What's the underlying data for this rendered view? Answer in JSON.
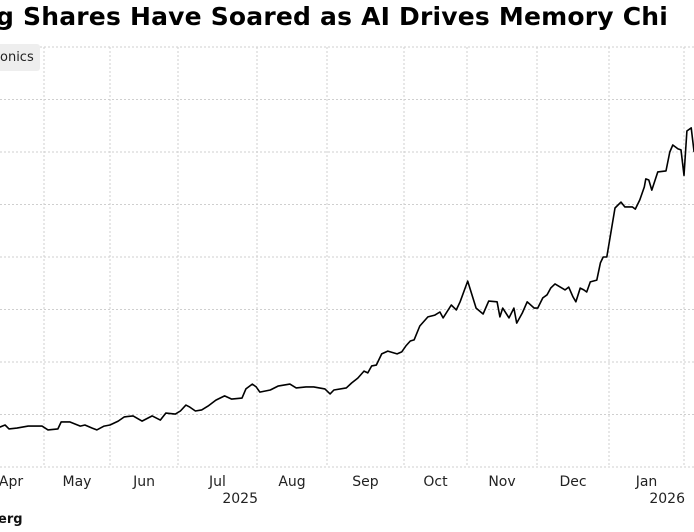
{
  "chart_data": {
    "type": "line",
    "title": "g Shares Have Soared as AI Drives Memory Chi",
    "legend": [
      {
        "name": "onics",
        "color": "#000000"
      }
    ],
    "legend_placement": "top-left",
    "xlabel": "",
    "ylabel": "",
    "x_ticks": [
      "Apr",
      "May",
      "Jun",
      "Jul",
      "Aug",
      "Sep",
      "Oct",
      "Nov",
      "Dec",
      "Jan"
    ],
    "x_year_labels": [
      {
        "label": "2025",
        "after_month": "Jul"
      },
      {
        "label": "2026",
        "after_month": "Jan"
      }
    ],
    "x_unit": "months since 2025-04-01 (May 1 = 1)",
    "ylim": [
      40000,
      160000
    ],
    "y_grid_step": 15000,
    "grid": true,
    "series": [
      {
        "name": "onics",
        "color": "#000000",
        "points": [
          [
            0.33,
            51400
          ],
          [
            0.41,
            52000
          ],
          [
            0.47,
            50900
          ],
          [
            0.59,
            51100
          ],
          [
            0.76,
            51700
          ],
          [
            0.97,
            51700
          ],
          [
            1.06,
            50600
          ],
          [
            1.21,
            50900
          ],
          [
            1.26,
            52900
          ],
          [
            1.39,
            52900
          ],
          [
            1.55,
            51700
          ],
          [
            1.62,
            52000
          ],
          [
            1.73,
            51100
          ],
          [
            1.8,
            50600
          ],
          [
            1.91,
            51700
          ],
          [
            2.0,
            52000
          ],
          [
            2.12,
            53100
          ],
          [
            2.21,
            54300
          ],
          [
            2.34,
            54600
          ],
          [
            2.47,
            53100
          ],
          [
            2.62,
            54600
          ],
          [
            2.74,
            53400
          ],
          [
            2.82,
            55400
          ],
          [
            2.96,
            55100
          ],
          [
            3.03,
            56000
          ],
          [
            3.1,
            57700
          ],
          [
            3.15,
            57100
          ],
          [
            3.22,
            56000
          ],
          [
            3.3,
            56300
          ],
          [
            3.38,
            57400
          ],
          [
            3.48,
            59100
          ],
          [
            3.59,
            60300
          ],
          [
            3.68,
            59400
          ],
          [
            3.81,
            59700
          ],
          [
            3.86,
            62300
          ],
          [
            3.94,
            63700
          ],
          [
            3.99,
            62900
          ],
          [
            4.04,
            61400
          ],
          [
            4.19,
            62000
          ],
          [
            4.3,
            63100
          ],
          [
            4.47,
            63700
          ],
          [
            4.56,
            62600
          ],
          [
            4.7,
            62900
          ],
          [
            4.81,
            62900
          ],
          [
            4.97,
            62300
          ],
          [
            5.04,
            60900
          ],
          [
            5.09,
            62000
          ],
          [
            5.25,
            62600
          ],
          [
            5.32,
            64000
          ],
          [
            5.4,
            65400
          ],
          [
            5.48,
            67400
          ],
          [
            5.53,
            66900
          ],
          [
            5.58,
            68900
          ],
          [
            5.64,
            69100
          ],
          [
            5.71,
            72300
          ],
          [
            5.79,
            73100
          ],
          [
            5.91,
            72300
          ],
          [
            5.97,
            72900
          ],
          [
            6.03,
            74600
          ],
          [
            6.1,
            76000
          ],
          [
            6.16,
            76300
          ],
          [
            6.25,
            80300
          ],
          [
            6.38,
            82900
          ],
          [
            6.49,
            83400
          ],
          [
            6.57,
            84300
          ],
          [
            6.62,
            82600
          ],
          [
            6.75,
            86300
          ],
          [
            6.83,
            84900
          ],
          [
            6.89,
            87200
          ],
          [
            7.01,
            93100
          ],
          [
            7.13,
            85400
          ],
          [
            7.23,
            83700
          ],
          [
            7.31,
            87400
          ],
          [
            7.43,
            87200
          ],
          [
            7.47,
            82900
          ],
          [
            7.51,
            85400
          ],
          [
            7.6,
            82600
          ],
          [
            7.67,
            85400
          ],
          [
            7.71,
            81100
          ],
          [
            7.79,
            84000
          ],
          [
            7.86,
            87200
          ],
          [
            7.96,
            85400
          ],
          [
            8.01,
            85400
          ],
          [
            8.08,
            88300
          ],
          [
            8.14,
            89200
          ],
          [
            8.19,
            91100
          ],
          [
            8.25,
            92300
          ],
          [
            8.39,
            90600
          ],
          [
            8.44,
            91400
          ],
          [
            8.5,
            88600
          ],
          [
            8.54,
            87200
          ],
          [
            8.6,
            91100
          ],
          [
            8.65,
            90600
          ],
          [
            8.69,
            90000
          ],
          [
            8.74,
            92900
          ],
          [
            8.83,
            93400
          ],
          [
            8.88,
            98300
          ],
          [
            8.92,
            100000
          ],
          [
            8.97,
            100000
          ],
          [
            9.08,
            114000
          ],
          [
            9.16,
            115700
          ],
          [
            9.21,
            114300
          ],
          [
            9.31,
            114300
          ],
          [
            9.35,
            113700
          ],
          [
            9.41,
            116300
          ],
          [
            9.47,
            120000
          ],
          [
            9.49,
            122300
          ],
          [
            9.53,
            122000
          ],
          [
            9.57,
            119100
          ],
          [
            9.65,
            124300
          ],
          [
            9.76,
            124600
          ],
          [
            9.81,
            130000
          ],
          [
            9.85,
            132000
          ],
          [
            9.92,
            130900
          ],
          [
            9.96,
            130600
          ],
          [
            10.0,
            123300
          ],
          [
            10.04,
            136000
          ],
          [
            10.1,
            136900
          ],
          [
            10.14,
            130000
          ]
        ]
      }
    ],
    "source": "erg"
  }
}
